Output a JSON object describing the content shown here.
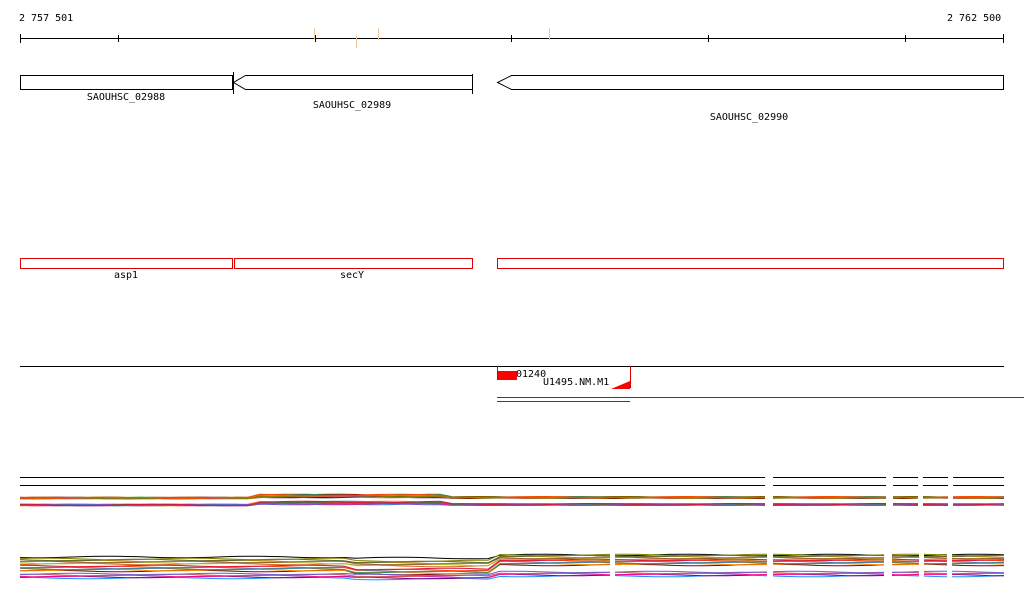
{
  "ruler": {
    "start_label": "2 757 501",
    "end_label": "2 762 500"
  },
  "genes": [
    {
      "id": "SAOUHSC_02988",
      "direction": "reverse"
    },
    {
      "id": "SAOUHSC_02989",
      "direction": "reverse"
    },
    {
      "id": "SAOUHSC_02990",
      "direction": "reverse"
    }
  ],
  "gene_names": [
    {
      "name": "asp1"
    },
    {
      "name": "secY"
    },
    {
      "name": ""
    }
  ],
  "features": {
    "label_a": "01240",
    "label_b": "U1495.NM.M1"
  },
  "colors": {
    "feature": "#ff0000",
    "axis": "#000000"
  }
}
